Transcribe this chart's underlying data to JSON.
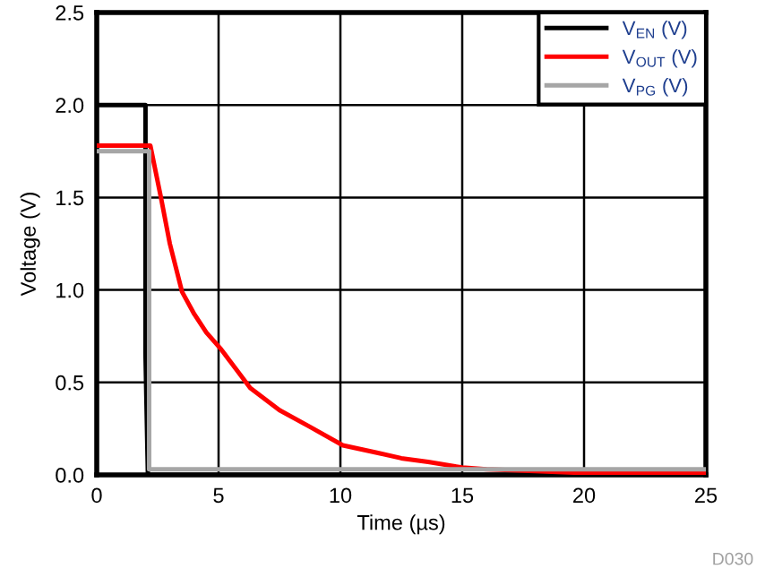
{
  "chart_data": {
    "type": "line",
    "xlabel": "Time (µs)",
    "ylabel": "Voltage (V)",
    "xlim": [
      0,
      25
    ],
    "ylim": [
      0,
      2.5
    ],
    "xticks": [
      0,
      5,
      10,
      15,
      20,
      25
    ],
    "yticks": [
      {
        "value": 0,
        "label": "0.0"
      },
      0.5,
      {
        "value": 1,
        "label": "1.0"
      },
      1.5,
      {
        "value": 2,
        "label": "2.0"
      },
      2.5
    ],
    "grid": true,
    "legend": "top right",
    "annotations": [
      "D030"
    ],
    "series": [
      {
        "name": "V$_{EN}$ (V)",
        "color": "#000000",
        "x": [
          0,
          2.0,
          2.0,
          2.1,
          25
        ],
        "values": [
          2.0,
          2.0,
          0.66,
          0,
          0
        ]
      },
      {
        "name": "V$_{OUT}$ (V)",
        "color": "#ff0000",
        "x": [
          0,
          2.2,
          2.65,
          3.0,
          3.5,
          4.0,
          4.5,
          5.1,
          6.3,
          7.5,
          8.75,
          10.1,
          11.5,
          12.5,
          13.6,
          15,
          16,
          18,
          20,
          23,
          25
        ],
        "values": [
          1.78,
          1.78,
          1.49,
          1.25,
          0.99,
          0.87,
          0.77,
          0.68,
          0.47,
          0.35,
          0.26,
          0.16,
          0.12,
          0.09,
          0.07,
          0.04,
          0.03,
          0.02,
          0.01,
          0.01,
          0.01
        ]
      },
      {
        "name": "V$_{PG}$ (V)",
        "color": "#a6a6a6",
        "x": [
          0,
          2.15,
          2.15,
          25
        ],
        "values": [
          1.75,
          1.75,
          0.03,
          0.03
        ]
      }
    ]
  }
}
